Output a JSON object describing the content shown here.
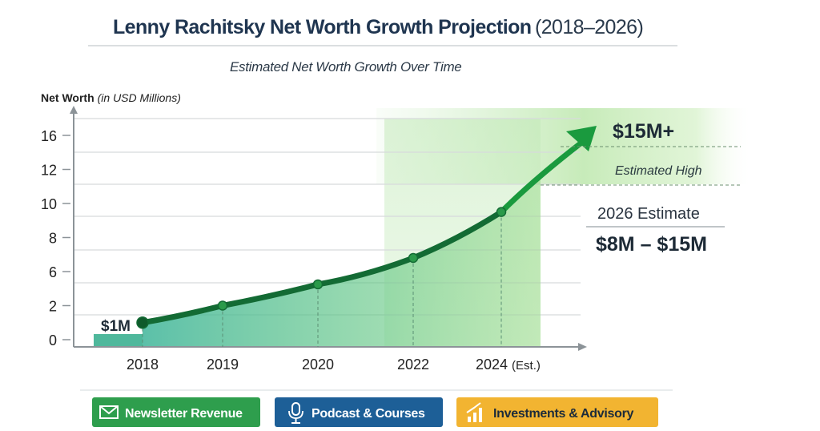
{
  "header": {
    "title": "Lenny Rachitsky Net Worth Growth Projection",
    "title_years": "(2018–2026)",
    "subtitle": "Estimated Net Worth Growth Over Time"
  },
  "chart_data": {
    "type": "line",
    "title": "Lenny Rachitsky Net Worth Growth Projection (2018–2026)",
    "subtitle": "Estimated Net Worth Growth Over Time",
    "ylabel": "Net Worth",
    "ylabel_unit": "(in USD Millions)",
    "yticks": [
      "16",
      "12",
      "10",
      "8",
      "6",
      "2",
      "0"
    ],
    "ytick_values": [
      16,
      12,
      10,
      8,
      6,
      2,
      0
    ],
    "categories": [
      "2018",
      "2019",
      "2020",
      "2022",
      "2024 (Est.)"
    ],
    "values": [
      1,
      2,
      4.5,
      6.8,
      9.5
    ],
    "projection_end_value": 15,
    "grid": true,
    "annotations": {
      "start_label": "$1M",
      "high_label": "$15M+",
      "high_caption": "Estimated High",
      "estimate_title": "2026 Estimate",
      "estimate_range": "$8M – $15M"
    },
    "colors": {
      "line": "#136b34",
      "arrow": "#1a9a3e",
      "fill": "#4cc08a"
    }
  },
  "legend": [
    {
      "label": "Newsletter Revenue",
      "icon": "envelope-icon",
      "color": "#2e9e4d",
      "text_color": "#ffffff"
    },
    {
      "label": "Podcast & Courses",
      "icon": "microphone-icon",
      "color": "#1d5f97",
      "text_color": "#ffffff"
    },
    {
      "label": "Investments & Advisory",
      "icon": "bar-chart-icon",
      "color": "#f2b431",
      "text_color": "#1c2b3a"
    }
  ]
}
